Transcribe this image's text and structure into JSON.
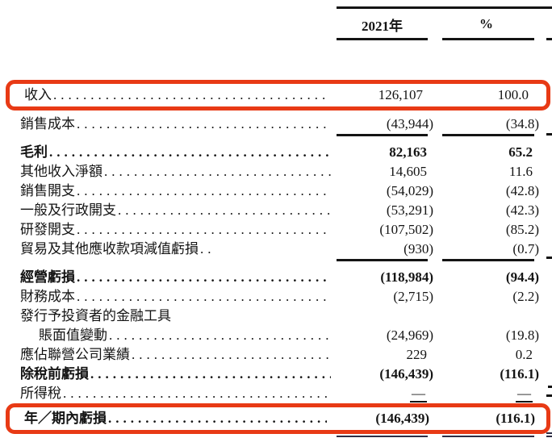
{
  "document": {
    "kind": "financial-statement-extract",
    "language": "zh-Hant"
  },
  "colors": {
    "highlight_box": "#e83a15",
    "text": "#141414",
    "double_rule": "#2d2d44"
  },
  "table": {
    "columns": [
      {
        "label": "2021年"
      },
      {
        "label": "%"
      }
    ],
    "rows": [
      {
        "label": "收入",
        "v2021": "126,107",
        "pct": "100.0",
        "boxed": true,
        "leader": "full"
      },
      {
        "label": "銷售成本",
        "v2021": "(43,944)",
        "pct": "(34.8)",
        "leader": "full",
        "rule_after": "single"
      },
      {
        "label": "毛利",
        "v2021": "82,163",
        "pct": "65.2",
        "bold": true,
        "leader": "full",
        "section_gap": true
      },
      {
        "label": "其他收入淨額",
        "v2021": "14,605",
        "pct": "11.6",
        "leader": "full"
      },
      {
        "label": "銷售開支",
        "v2021": "(54,029)",
        "pct": "(42.8)",
        "leader": "full"
      },
      {
        "label": "一般及行政開支",
        "v2021": "(53,291)",
        "pct": "(42.3)",
        "leader": "full"
      },
      {
        "label": "研發開支",
        "v2021": "(107,502)",
        "pct": "(85.2)",
        "leader": "full"
      },
      {
        "label": "貿易及其他應收款項減值虧損",
        "v2021": "(930)",
        "pct": "(0.7)",
        "leader": "short",
        "rule_after": "single"
      },
      {
        "label": "經營虧損",
        "v2021": "(118,984)",
        "pct": "(94.4)",
        "bold": true,
        "leader": "full",
        "section_gap": true
      },
      {
        "label": "財務成本",
        "v2021": "(2,715)",
        "pct": "(2.2)",
        "leader": "full"
      },
      {
        "label": "發行予投資者的金融工具",
        "v2021": "",
        "pct": "",
        "leader": "none"
      },
      {
        "label": "賬面值變動",
        "v2021": "(24,969)",
        "pct": "(19.8)",
        "leader": "full",
        "indent": true
      },
      {
        "label": "應佔聯營公司業績",
        "v2021": "229",
        "pct": "0.2",
        "leader": "full"
      },
      {
        "label": "除稅前虧損",
        "v2021": "(146,439)",
        "pct": "(116.1)",
        "bold": true,
        "leader": "full"
      },
      {
        "label": "所得稅",
        "v2021": "—",
        "pct": "—",
        "leader": "full",
        "dash_underline": true
      },
      {
        "label": "年／期內虧損",
        "v2021": "(146,439)",
        "pct": "(116.1)",
        "bold": true,
        "boxed": true,
        "leader": "full",
        "rule_after": "double"
      }
    ]
  }
}
